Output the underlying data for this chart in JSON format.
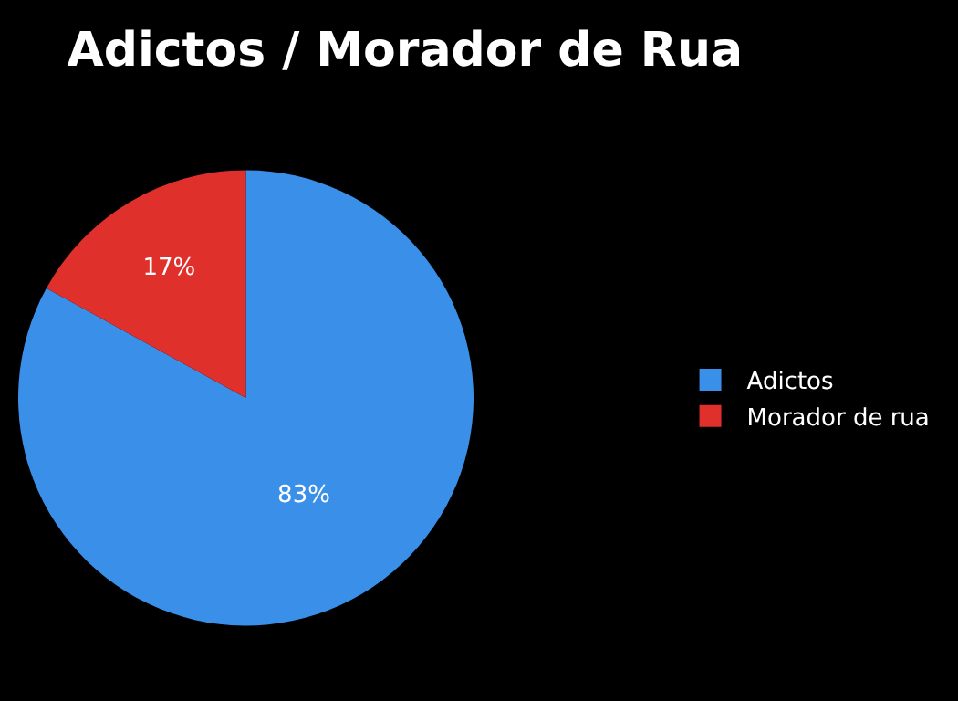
{
  "chart_data": {
    "type": "pie",
    "title": "Adictos / Morador de Rua",
    "categories": [
      "Adictos",
      "Morador de rua"
    ],
    "values": [
      83,
      17
    ],
    "colors": [
      "#3a8fe8",
      "#e0302c"
    ],
    "value_labels": [
      "83%",
      "17%"
    ],
    "legend": "right"
  }
}
